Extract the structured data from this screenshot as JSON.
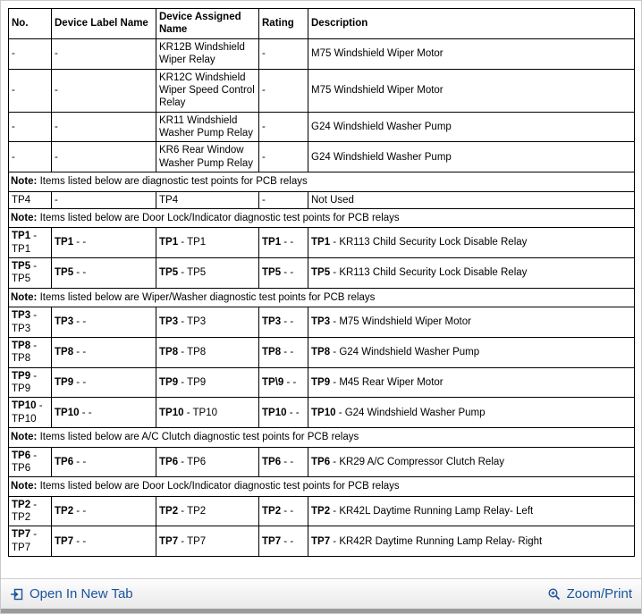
{
  "table": {
    "headers": [
      "No.",
      "Device Label Name",
      "Device Assigned Name",
      "Rating",
      "Description"
    ],
    "rows": [
      {
        "cells": [
          "-",
          "-",
          "KR12B Windshield Wiper Relay",
          "-",
          "M75 Windshield Wiper Motor"
        ]
      },
      {
        "cells": [
          "-",
          "-",
          "KR12C Windshield Wiper Speed Control Relay",
          "-",
          "M75 Windshield Wiper Motor"
        ]
      },
      {
        "cells": [
          "-",
          "-",
          "KR11 Windshield Washer Pump Relay",
          "-",
          "G24 Windshield Washer Pump"
        ]
      },
      {
        "cells": [
          "-",
          "-",
          "KR6 Rear Window Washer Pump Relay",
          "-",
          "G24 Windshield Washer Pump"
        ]
      },
      {
        "note": {
          "label": "Note:",
          "text": "Items listed below are diagnostic test points for PCB relays"
        }
      },
      {
        "cells": [
          "TP4",
          "-",
          "TP4",
          "-",
          "Not Used"
        ]
      },
      {
        "note": {
          "label": "Note:",
          "text": "Items listed below are Door Lock/Indicator diagnostic test points for PCB relays"
        }
      },
      {
        "cells": [
          {
            "b": "TP1",
            "r": " - TP1"
          },
          {
            "b": "TP1",
            "r": " - -"
          },
          {
            "b": "TP1",
            "r": " - TP1"
          },
          {
            "b": "TP1",
            "r": " - -"
          },
          {
            "b": "TP1",
            "r": " - KR113 Child Security Lock Disable Relay"
          }
        ]
      },
      {
        "cells": [
          {
            "b": "TP5",
            "r": " - TP5"
          },
          {
            "b": "TP5",
            "r": " - -"
          },
          {
            "b": "TP5",
            "r": " - TP5"
          },
          {
            "b": "TP5",
            "r": " - -"
          },
          {
            "b": "TP5",
            "r": " - KR113 Child Security Lock Disable Relay"
          }
        ]
      },
      {
        "note": {
          "label": "Note:",
          "text": "Items listed below are Wiper/Washer diagnostic test points for PCB relays"
        }
      },
      {
        "cells": [
          {
            "b": "TP3",
            "r": " - TP3"
          },
          {
            "b": "TP3",
            "r": " - -"
          },
          {
            "b": "TP3",
            "r": " - TP3"
          },
          {
            "b": "TP3",
            "r": " - -"
          },
          {
            "b": "TP3",
            "r": " - M75 Windshield Wiper Motor"
          }
        ]
      },
      {
        "cells": [
          {
            "b": "TP8",
            "r": " - TP8"
          },
          {
            "b": "TP8",
            "r": " - -"
          },
          {
            "b": "TP8",
            "r": " - TP8"
          },
          {
            "b": "TP8",
            "r": " - -"
          },
          {
            "b": "TP8",
            "r": " - G24 Windshield Washer Pump"
          }
        ]
      },
      {
        "cells": [
          {
            "b": "TP9",
            "r": " - TP9"
          },
          {
            "b": "TP9",
            "r": " - -"
          },
          {
            "b": "TP9",
            "r": " - TP9"
          },
          {
            "b": "TP\\9",
            "r": " - -"
          },
          {
            "b": "TP9",
            "r": " - M45 Rear Wiper Motor"
          }
        ]
      },
      {
        "cells": [
          {
            "b": "TP10",
            "r": " - TP10"
          },
          {
            "b": "TP10",
            "r": " - -"
          },
          {
            "b": "TP10",
            "r": " - TP10"
          },
          {
            "b": "TP10",
            "r": " - -"
          },
          {
            "b": "TP10",
            "r": " - G24 Windshield Washer Pump"
          }
        ]
      },
      {
        "note": {
          "label": "Note:",
          "text": "Items listed below are A/C Clutch diagnostic test points for PCB relays"
        }
      },
      {
        "cells": [
          {
            "b": "TP6",
            "r": " - TP6"
          },
          {
            "b": "TP6",
            "r": " - -"
          },
          {
            "b": "TP6",
            "r": " - TP6"
          },
          {
            "b": "TP6",
            "r": " - -"
          },
          {
            "b": "TP6",
            "r": " - KR29 A/C Compressor Clutch Relay"
          }
        ]
      },
      {
        "note": {
          "label": "Note:",
          "text": "Items listed below are Door Lock/Indicator diagnostic test points for PCB relays"
        }
      },
      {
        "cells": [
          {
            "b": "TP2",
            "r": " - TP2"
          },
          {
            "b": "TP2",
            "r": " - -"
          },
          {
            "b": "TP2",
            "r": " - TP2"
          },
          {
            "b": "TP2",
            "r": " - -"
          },
          {
            "b": "TP2",
            "r": " - KR42L Daytime Running Lamp Relay- Left"
          }
        ]
      },
      {
        "cells": [
          {
            "b": "TP7",
            "r": " - TP7"
          },
          {
            "b": "TP7",
            "r": " - -"
          },
          {
            "b": "TP7",
            "r": " - TP7"
          },
          {
            "b": "TP7",
            "r": " - -"
          },
          {
            "b": "TP7",
            "r": " - KR42R Daytime Running Lamp Relay- Right"
          }
        ]
      }
    ]
  },
  "footer": {
    "open_in_new_tab_label": "Open In New Tab",
    "zoom_print_label": "Zoom/Print"
  },
  "colors": {
    "link_blue": "#17549b",
    "table_border": "#000000"
  }
}
